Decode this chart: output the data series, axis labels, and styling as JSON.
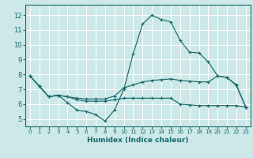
{
  "xlabel": "Humidex (Indice chaleur)",
  "bg_color": "#cce8e8",
  "grid_color": "#ffffff",
  "line_color": "#1a6b6b",
  "xlim": [
    -0.5,
    23.5
  ],
  "ylim": [
    4.5,
    12.7
  ],
  "yticks": [
    5,
    6,
    7,
    8,
    9,
    10,
    11,
    12
  ],
  "xticks": [
    0,
    1,
    2,
    3,
    4,
    5,
    6,
    7,
    8,
    9,
    10,
    11,
    12,
    13,
    14,
    15,
    16,
    17,
    18,
    19,
    20,
    21,
    22,
    23
  ],
  "line1_x": [
    0,
    1,
    2,
    3,
    4,
    5,
    6,
    7,
    8,
    9,
    10,
    11,
    12,
    13,
    14,
    15,
    16,
    17,
    18,
    19,
    20,
    21,
    22,
    23
  ],
  "line1_y": [
    7.9,
    7.2,
    6.5,
    6.6,
    6.1,
    5.6,
    5.5,
    5.3,
    4.85,
    5.6,
    7.0,
    9.4,
    11.4,
    12.0,
    11.7,
    11.55,
    10.3,
    9.5,
    9.45,
    8.85,
    7.9,
    7.8,
    7.3,
    5.8
  ],
  "line2_x": [
    0,
    1,
    2,
    3,
    4,
    5,
    6,
    7,
    8,
    9,
    10,
    11,
    12,
    13,
    14,
    15,
    16,
    17,
    18,
    19,
    20,
    21,
    22,
    23
  ],
  "line2_y": [
    7.9,
    7.2,
    6.5,
    6.6,
    6.5,
    6.4,
    6.35,
    6.35,
    6.35,
    6.55,
    7.1,
    7.3,
    7.5,
    7.6,
    7.65,
    7.7,
    7.6,
    7.55,
    7.5,
    7.5,
    7.9,
    7.8,
    7.25,
    5.8
  ],
  "line3_x": [
    0,
    1,
    2,
    3,
    4,
    5,
    6,
    7,
    8,
    9,
    10,
    11,
    12,
    13,
    14,
    15,
    16,
    17,
    18,
    19,
    20,
    21,
    22,
    23
  ],
  "line3_y": [
    7.9,
    7.2,
    6.5,
    6.6,
    6.5,
    6.3,
    6.2,
    6.2,
    6.2,
    6.3,
    6.4,
    6.4,
    6.4,
    6.4,
    6.4,
    6.4,
    6.0,
    5.95,
    5.9,
    5.9,
    5.9,
    5.9,
    5.9,
    5.8
  ]
}
